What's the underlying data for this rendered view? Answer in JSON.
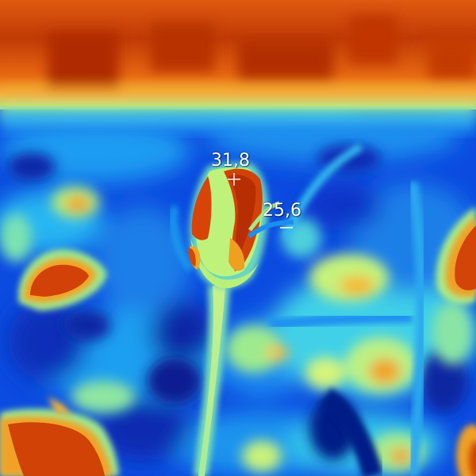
{
  "image": {
    "kind": "thermal camera capture",
    "palette": {
      "hot": "#d84000",
      "warm": "#f7a41a",
      "mid": "#b4f080",
      "cool": "#1fb0f0",
      "cold": "#0a3fd8",
      "coldest": "#06208c"
    }
  },
  "measurements": {
    "hot_spot": {
      "value": "31,8",
      "marker": "crosshair-plus"
    },
    "cold_spot": {
      "value": "25,6",
      "marker": "crosshair-minus"
    }
  }
}
